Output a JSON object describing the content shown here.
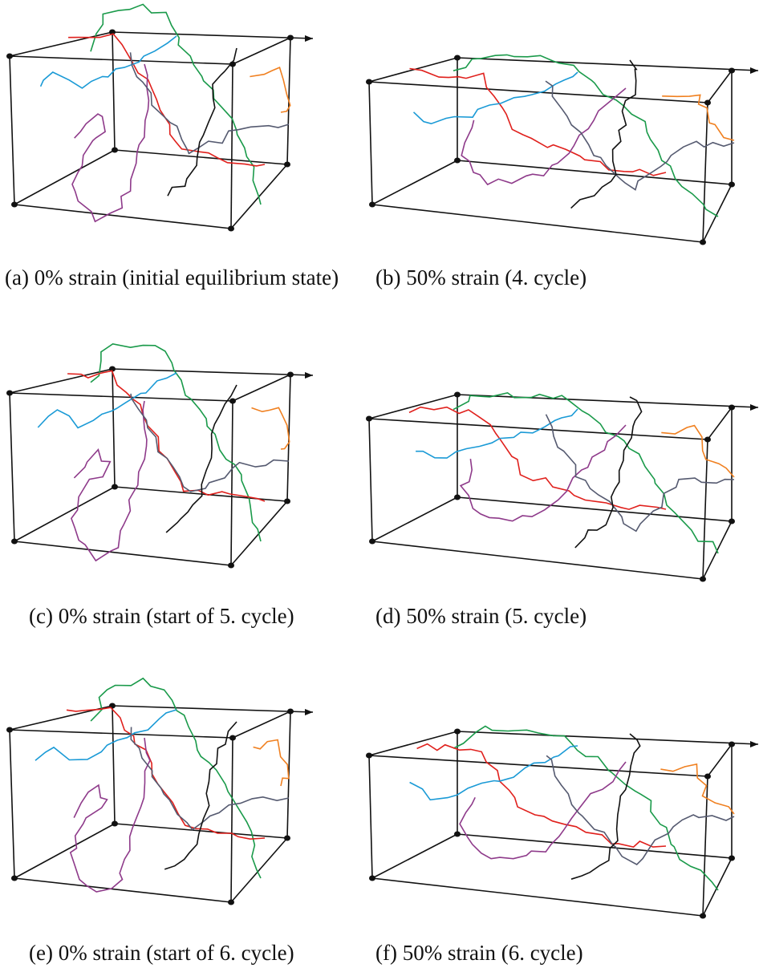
{
  "figure": {
    "panels": [
      {
        "caption": "(a) 0% strain (initial equilibrium state)"
      },
      {
        "caption": "(b) 50% strain (4. cycle)"
      },
      {
        "caption": "(c) 0% strain (start of 5. cycle)"
      },
      {
        "caption": "(d) 50% strain (5. cycle)"
      },
      {
        "caption": "(e) 0% strain (start of 6. cycle)"
      },
      {
        "caption": "(f) 50% strain (6. cycle)"
      }
    ]
  }
}
